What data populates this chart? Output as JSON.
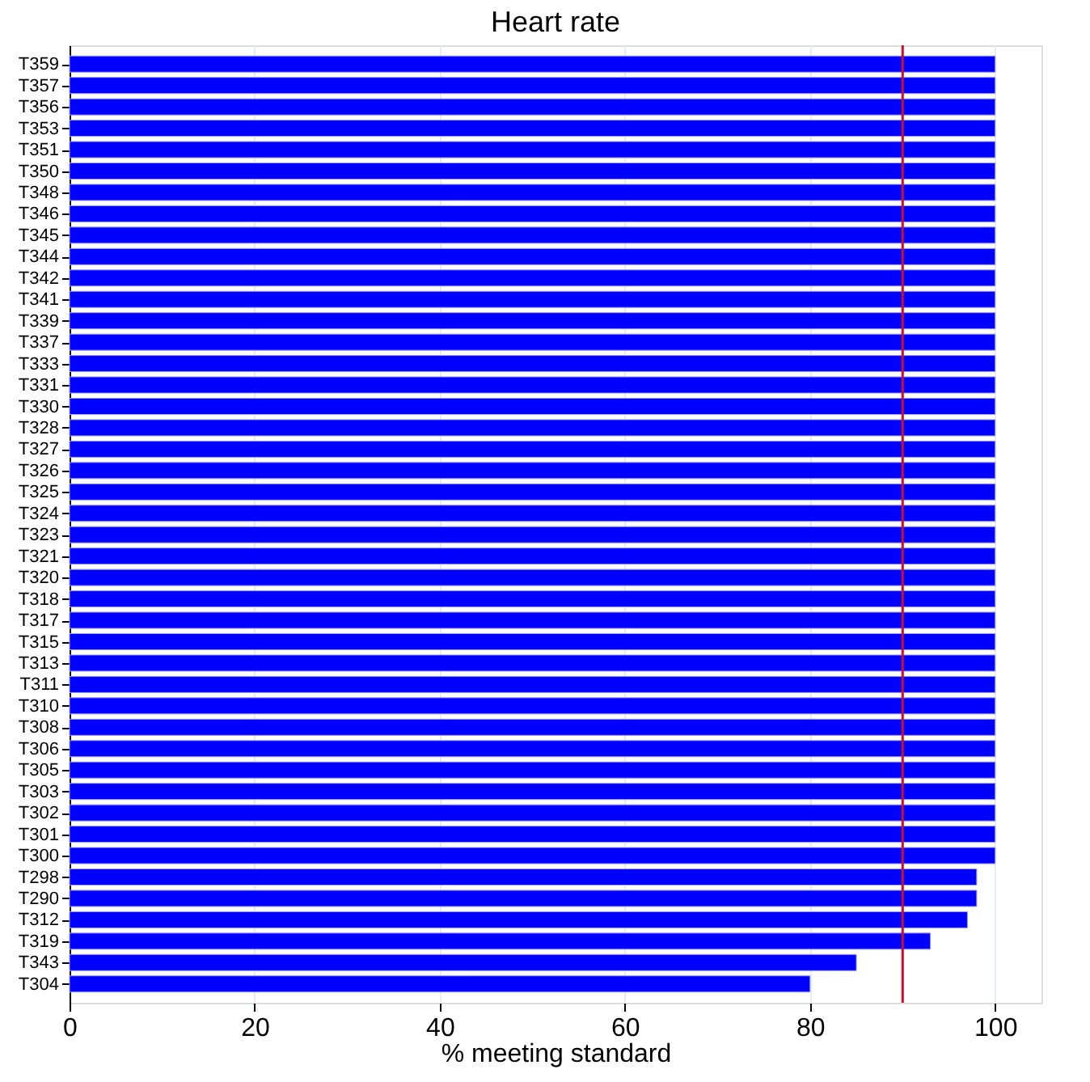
{
  "chart_data": {
    "type": "bar",
    "orientation": "horizontal",
    "title": "Heart rate",
    "xlabel": "% meeting standard",
    "categories": [
      "T359",
      "T357",
      "T356",
      "T353",
      "T351",
      "T350",
      "T348",
      "T346",
      "T345",
      "T344",
      "T342",
      "T341",
      "T339",
      "T337",
      "T333",
      "T331",
      "T330",
      "T328",
      "T327",
      "T326",
      "T325",
      "T324",
      "T323",
      "T321",
      "T320",
      "T318",
      "T317",
      "T315",
      "T313",
      "T311",
      "T310",
      "T308",
      "T306",
      "T305",
      "T303",
      "T302",
      "T301",
      "T300",
      "T298",
      "T290",
      "T312",
      "T319",
      "T343",
      "T304"
    ],
    "values": [
      100,
      100,
      100,
      100,
      100,
      100,
      100,
      100,
      100,
      100,
      100,
      100,
      100,
      100,
      100,
      100,
      100,
      100,
      100,
      100,
      100,
      100,
      100,
      100,
      100,
      100,
      100,
      100,
      100,
      100,
      100,
      100,
      100,
      100,
      100,
      100,
      100,
      100,
      98,
      98,
      97,
      93,
      85,
      80
    ],
    "color": "#0000ff",
    "xlim": [
      0,
      105
    ],
    "xticks": [
      0,
      20,
      40,
      60,
      80,
      100
    ],
    "grid": "x",
    "ref_lines": [
      {
        "axis": "x",
        "value": 90,
        "color": "#c8102e"
      }
    ]
  }
}
